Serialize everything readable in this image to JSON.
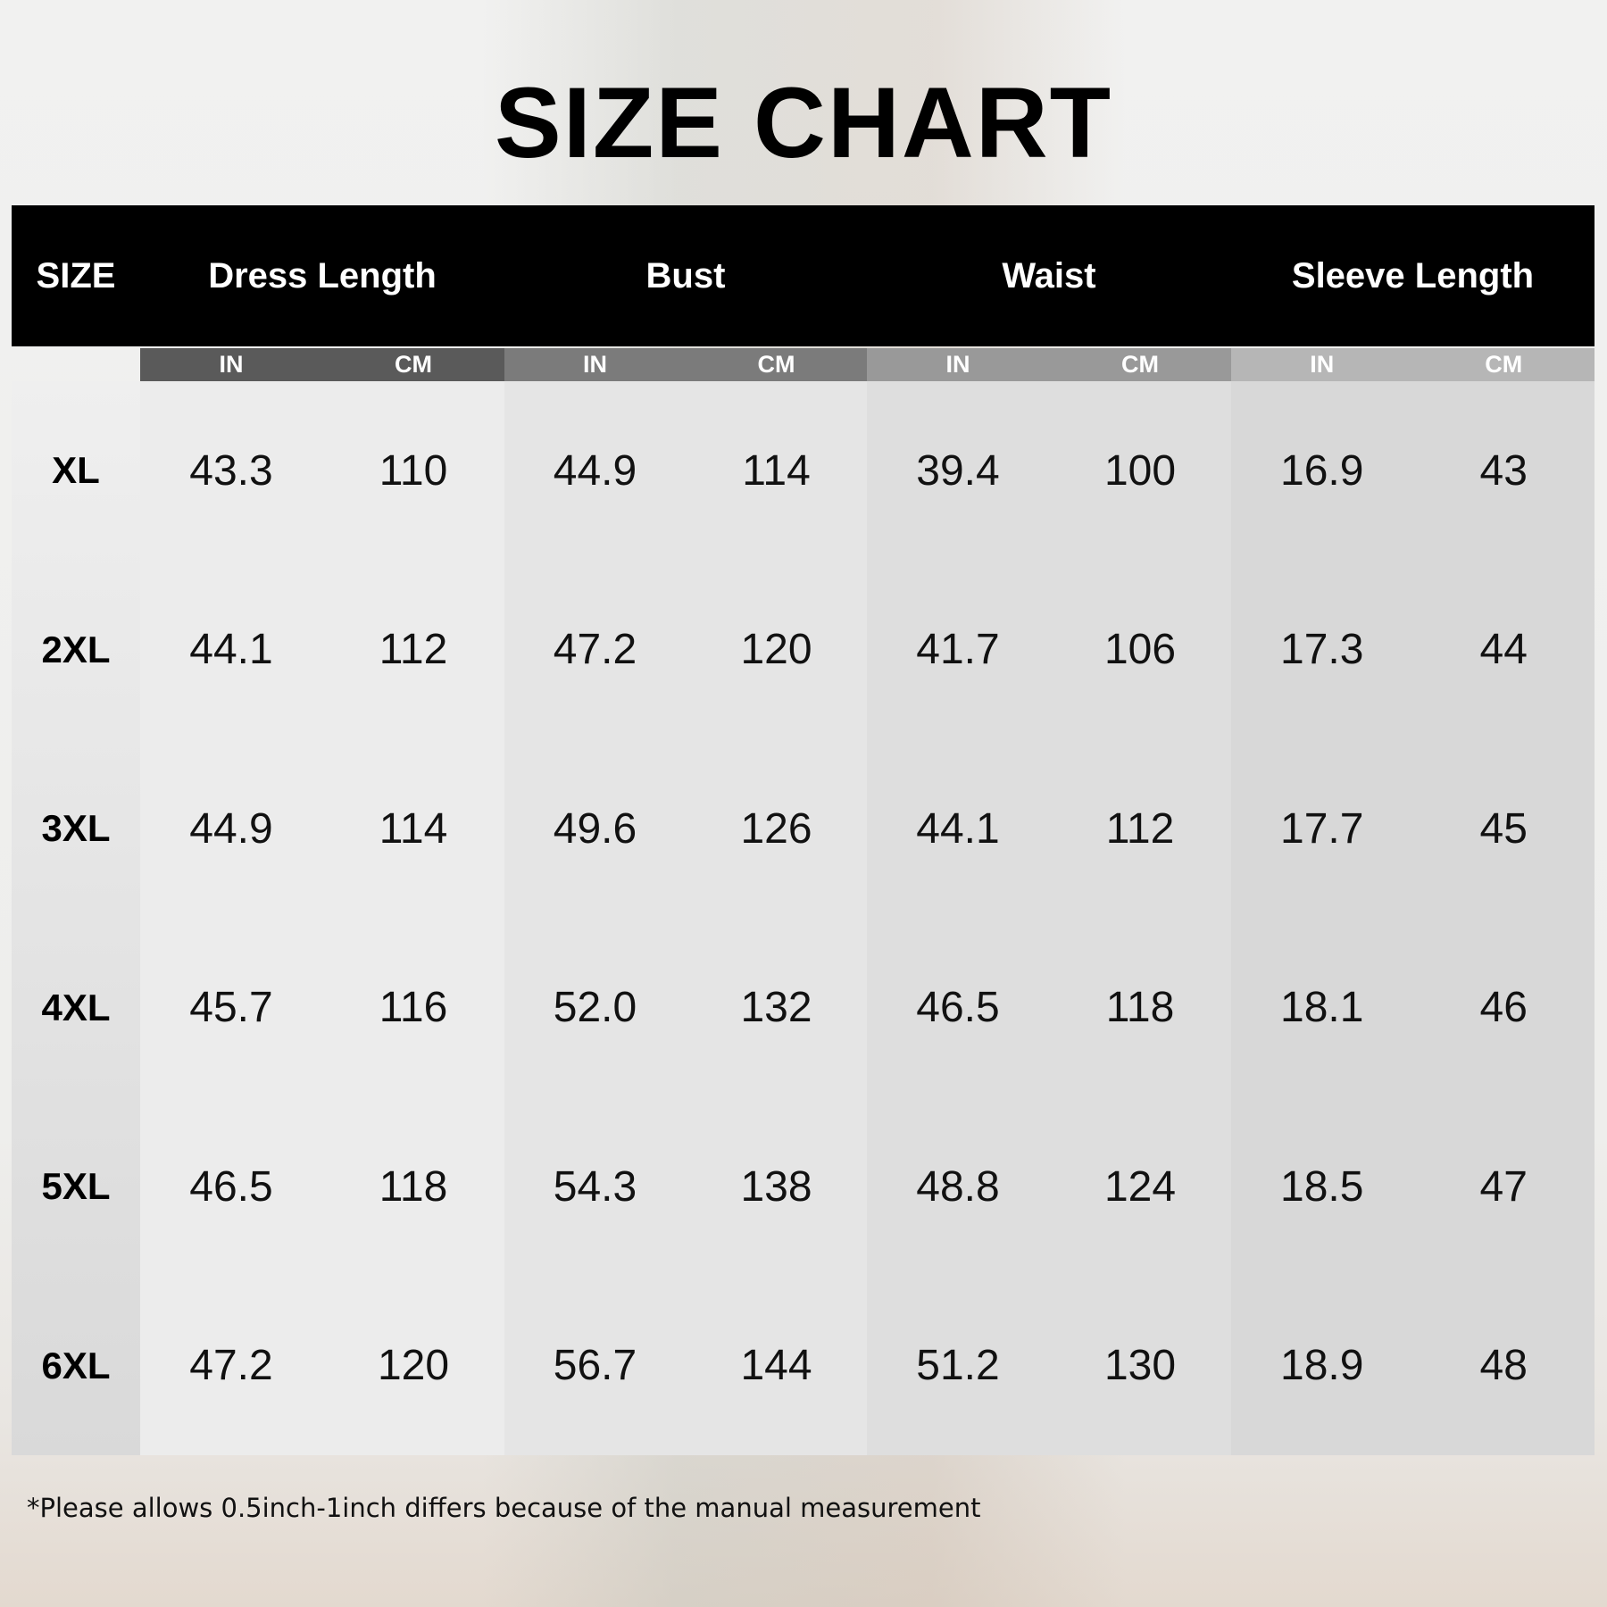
{
  "title": "SIZE CHART",
  "headers": {
    "size": "SIZE",
    "groups": [
      "Dress Length",
      "Bust",
      "Waist",
      "Sleeve Length"
    ]
  },
  "units": [
    "IN",
    "CM"
  ],
  "rows": [
    {
      "size": "XL",
      "values": [
        "43.3",
        "110",
        "44.9",
        "114",
        "39.4",
        "100",
        "16.9",
        "43"
      ]
    },
    {
      "size": "2XL",
      "values": [
        "44.1",
        "112",
        "47.2",
        "120",
        "41.7",
        "106",
        "17.3",
        "44"
      ]
    },
    {
      "size": "3XL",
      "values": [
        "44.9",
        "114",
        "49.6",
        "126",
        "44.1",
        "112",
        "17.7",
        "45"
      ]
    },
    {
      "size": "4XL",
      "values": [
        "45.7",
        "116",
        "52.0",
        "132",
        "46.5",
        "118",
        "18.1",
        "46"
      ]
    },
    {
      "size": "5XL",
      "values": [
        "46.5",
        "118",
        "54.3",
        "138",
        "48.8",
        "124",
        "18.5",
        "47"
      ]
    },
    {
      "size": "6XL",
      "values": [
        "47.2",
        "120",
        "56.7",
        "144",
        "51.2",
        "130",
        "18.9",
        "48"
      ]
    }
  ],
  "footnote": "*Please allows 0.5inch-1inch differs because of the manual measurement",
  "colors": {
    "header_bg": "#000000",
    "subheader": [
      "#5a5a5a",
      "#7b7b7b",
      "#999999",
      "#b6b6b6"
    ],
    "columns": [
      "#ececec",
      "#e5e5e5",
      "#dedede",
      "#d8d8d8"
    ]
  }
}
